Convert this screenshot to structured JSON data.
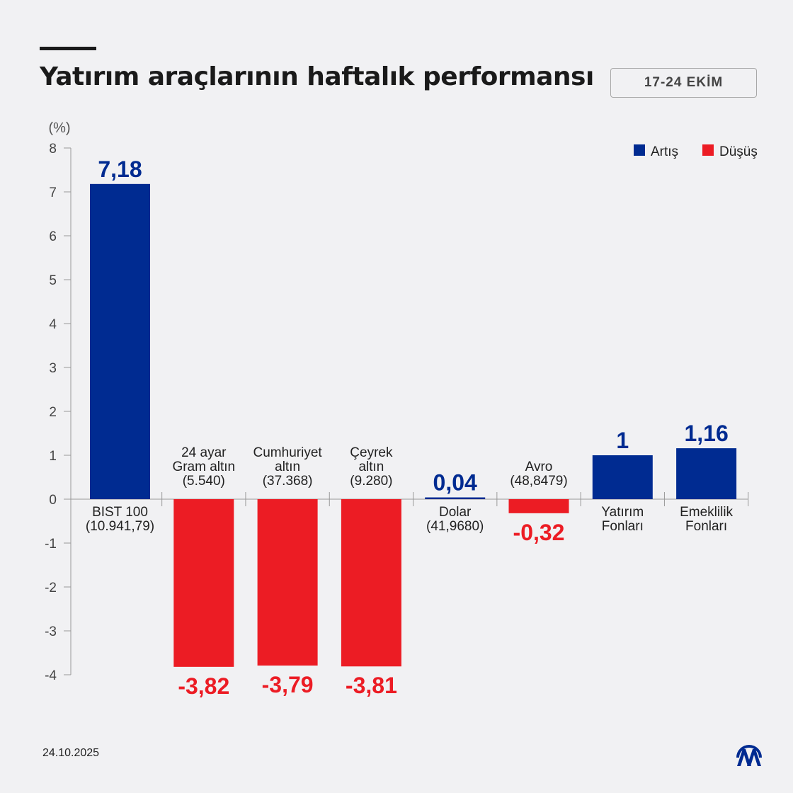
{
  "header": {
    "title": "Yatırım araçlarının haftalık performansı",
    "date_range": "17-24 EKİM"
  },
  "footer": {
    "date": "24.10.2025",
    "logo_text": "AA"
  },
  "colors": {
    "increase": "#002B91",
    "decrease": "#EC1C24",
    "background": "#F1F1F3"
  },
  "chart_data": {
    "type": "bar",
    "ylabel": "(%)",
    "ylim": [
      -4,
      8
    ],
    "yticks": [
      8,
      7,
      6,
      5,
      4,
      3,
      2,
      1,
      0,
      -1,
      -2,
      -3,
      -4
    ],
    "legend": {
      "position": "top-right",
      "entries": [
        {
          "label": "Artış",
          "color": "#002B91"
        },
        {
          "label": "Düşüş",
          "color": "#EC1C24"
        }
      ]
    },
    "categories": [
      {
        "lines": [
          "BIST 100",
          "(10.941,79)"
        ]
      },
      {
        "lines": [
          "24 ayar",
          "Gram altın",
          "(5.540)"
        ]
      },
      {
        "lines": [
          "Cumhuriyet",
          "altın",
          "(37.368)"
        ]
      },
      {
        "lines": [
          "Çeyrek",
          "altın",
          "(9.280)"
        ]
      },
      {
        "lines": [
          "Dolar",
          "(41,9680)"
        ]
      },
      {
        "lines": [
          "Avro",
          "(48,8479)"
        ]
      },
      {
        "lines": [
          "Yatırım",
          "Fonları"
        ]
      },
      {
        "lines": [
          "Emeklilik",
          "Fonları"
        ]
      }
    ],
    "values": [
      7.18,
      -3.82,
      -3.79,
      -3.81,
      0.04,
      -0.32,
      1,
      1.16
    ],
    "value_labels": [
      "7,18",
      "-3,82",
      "-3,79",
      "-3,81",
      "0,04",
      "-0,32",
      "1",
      "1,16"
    ]
  }
}
